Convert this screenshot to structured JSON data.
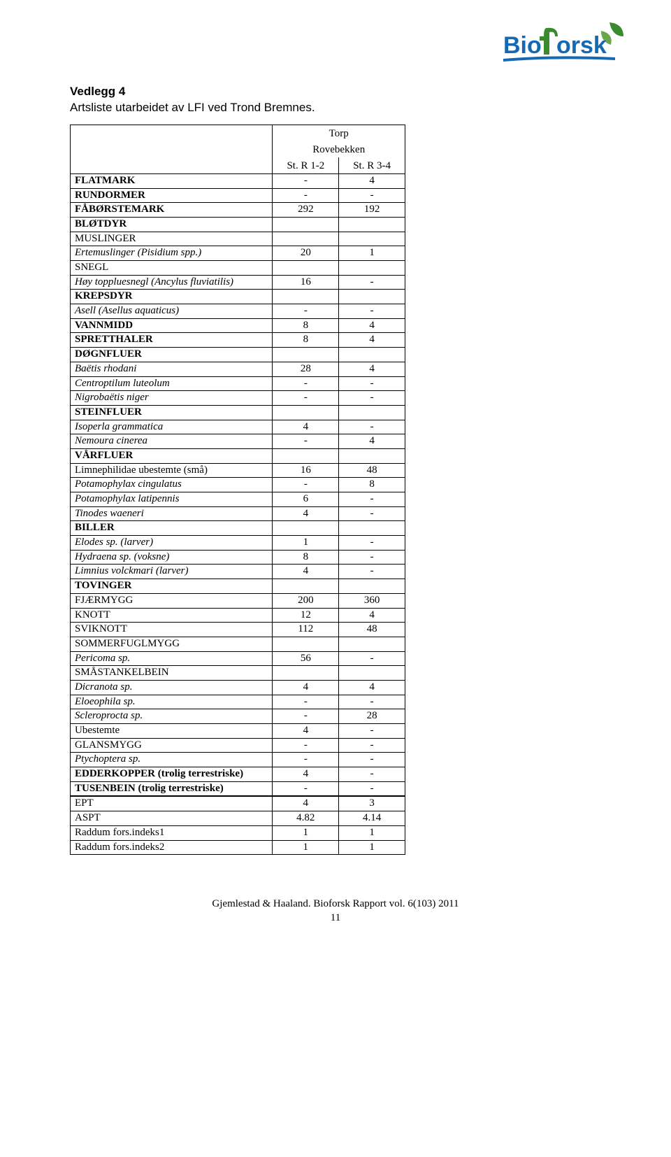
{
  "logo": {
    "text_prefix": "Bio",
    "text_suffix": "orsk",
    "color_blue": "#1569b2",
    "color_green": "#3a8a2e"
  },
  "header": {
    "title": "Vedlegg 4",
    "subtitle": "Artsliste utarbeidet av LFI ved Trond Bremnes."
  },
  "table": {
    "hdr_top": "Torp",
    "hdr_mid": "Rovebekken",
    "hdr_col1": "St. R 1-2",
    "hdr_col2": "St. R 3-4"
  },
  "rows": [
    {
      "name": "FLATMARK",
      "c1": "-",
      "c2": "4",
      "bold": true
    },
    {
      "name": "RUNDORMER",
      "c1": "-",
      "c2": "-",
      "bold": true
    },
    {
      "name": "FÅBØRSTEMARK",
      "c1": "292",
      "c2": "192",
      "bold": true
    },
    {
      "name": "BLØTDYR",
      "c1": "",
      "c2": "",
      "bold": true
    },
    {
      "name": "MUSLINGER",
      "c1": "",
      "c2": ""
    },
    {
      "name": "Ertemuslinger (Pisidium spp.)",
      "c1": "20",
      "c2": "1",
      "italic": true
    },
    {
      "name": "SNEGL",
      "c1": "",
      "c2": ""
    },
    {
      "name": "Høy toppluesnegl (Ancylus fluviatilis)",
      "c1": "16",
      "c2": "-",
      "italic": true
    },
    {
      "name": "KREPSDYR",
      "c1": "",
      "c2": "",
      "bold": true
    },
    {
      "name": "Asell (Asellus aquaticus)",
      "c1": "-",
      "c2": "-",
      "italic": true
    },
    {
      "name": "VANNMIDD",
      "c1": "8",
      "c2": "4",
      "bold": true
    },
    {
      "name": "SPRETTHALER",
      "c1": "8",
      "c2": "4",
      "bold": true
    },
    {
      "name": "DØGNFLUER",
      "c1": "",
      "c2": "",
      "bold": true
    },
    {
      "name": "Baëtis rhodani",
      "c1": "28",
      "c2": "4",
      "italic": true
    },
    {
      "name": "Centroptilum luteolum",
      "c1": "-",
      "c2": "-",
      "italic": true
    },
    {
      "name": "Nigrobaëtis niger",
      "c1": "-",
      "c2": "-",
      "italic": true
    },
    {
      "name": "STEINFLUER",
      "c1": "",
      "c2": "",
      "bold": true
    },
    {
      "name": "Isoperla grammatica",
      "c1": "4",
      "c2": "-",
      "italic": true
    },
    {
      "name": "Nemoura cinerea",
      "c1": "-",
      "c2": "4",
      "italic": true
    },
    {
      "name": "VÅRFLUER",
      "c1": "",
      "c2": "",
      "bold": true
    },
    {
      "name": "Limnephilidae ubestemte (små)",
      "c1": "16",
      "c2": "48"
    },
    {
      "name": "Potamophylax cingulatus",
      "c1": "-",
      "c2": "8",
      "italic": true
    },
    {
      "name": "Potamophylax latipennis",
      "c1": "6",
      "c2": "-",
      "italic": true
    },
    {
      "name": "Tinodes waeneri",
      "c1": "4",
      "c2": "-",
      "italic": true
    },
    {
      "name": "BILLER",
      "c1": "",
      "c2": "",
      "bold": true
    },
    {
      "name": "Elodes sp. (larver)",
      "c1": "1",
      "c2": "-",
      "italic": true
    },
    {
      "name": "Hydraena sp. (voksne)",
      "c1": "8",
      "c2": "-",
      "italic": true
    },
    {
      "name": "Limnius volckmari (larver)",
      "c1": "4",
      "c2": "-",
      "italic": true
    },
    {
      "name": "TOVINGER",
      "c1": "",
      "c2": "",
      "bold": true
    },
    {
      "name": "FJÆRMYGG",
      "c1": "200",
      "c2": "360"
    },
    {
      "name": "KNOTT",
      "c1": "12",
      "c2": "4"
    },
    {
      "name": "SVIKNOTT",
      "c1": "112",
      "c2": "48"
    },
    {
      "name": "SOMMERFUGLMYGG",
      "c1": "",
      "c2": ""
    },
    {
      "name": "Pericoma sp.",
      "c1": "56",
      "c2": "-",
      "italic": true
    },
    {
      "name": "SMÅSTANKELBEIN",
      "c1": "",
      "c2": ""
    },
    {
      "name": "Dicranota sp.",
      "c1": "4",
      "c2": "4",
      "italic": true
    },
    {
      "name": "Eloeophila sp.",
      "c1": "-",
      "c2": "-",
      "italic": true
    },
    {
      "name": "Scleroprocta sp.",
      "c1": "-",
      "c2": "28",
      "italic": true
    },
    {
      "name": "Ubestemte",
      "c1": "4",
      "c2": "-"
    },
    {
      "name": "GLANSMYGG",
      "c1": "-",
      "c2": "-"
    },
    {
      "name": "Ptychoptera sp.",
      "c1": "-",
      "c2": "-",
      "italic": true
    },
    {
      "name": "EDDERKOPPER (trolig terrestriske)",
      "c1": "4",
      "c2": "-",
      "bold": true
    },
    {
      "name": "TUSENBEIN (trolig terrestriske)",
      "c1": "-",
      "c2": "-",
      "bold": true
    }
  ],
  "summary": [
    {
      "name": "EPT",
      "c1": "4",
      "c2": "3"
    },
    {
      "name": "ASPT",
      "c1": "4.82",
      "c2": "4.14"
    },
    {
      "name": "Raddum fors.indeks1",
      "c1": "1",
      "c2": "1"
    },
    {
      "name": "Raddum fors.indeks2",
      "c1": "1",
      "c2": "1"
    }
  ],
  "footer": {
    "citation": "Gjemlestad & Haaland. Bioforsk Rapport vol. 6(103) 2011",
    "page": "11"
  }
}
